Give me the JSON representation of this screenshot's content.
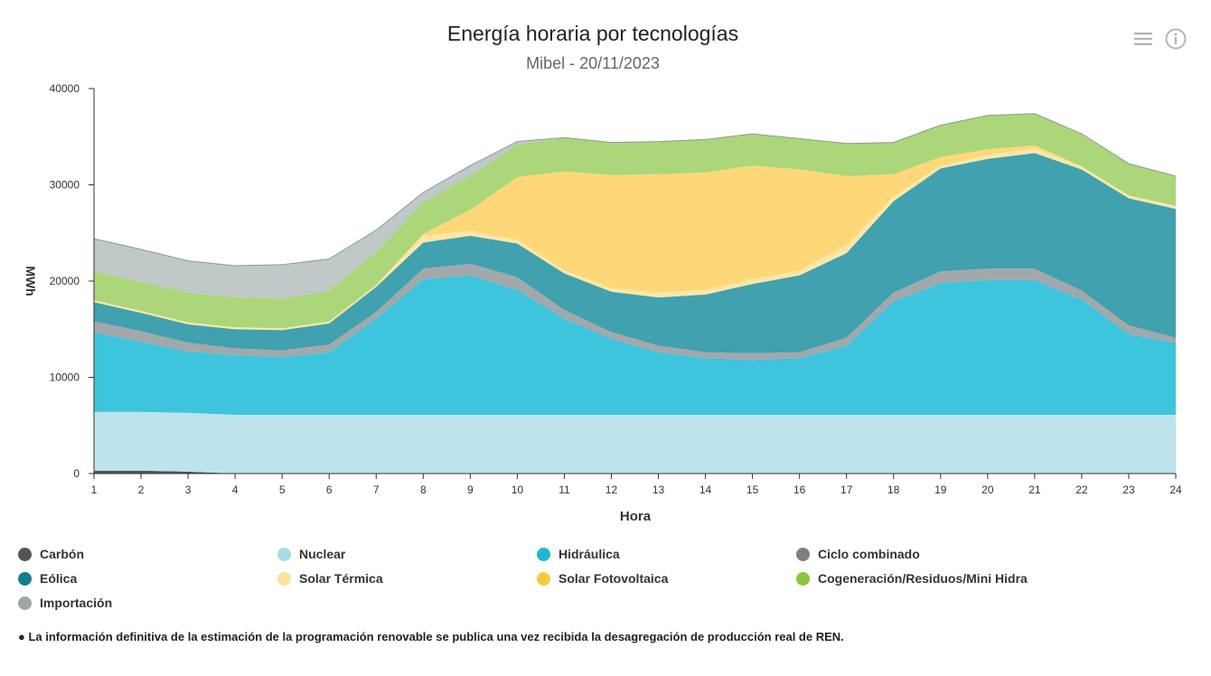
{
  "header": {
    "title": "Energía horaria por tecnologías",
    "subtitle": "Mibel - 20/11/2023"
  },
  "toolbar": {
    "menu_icon": "hamburger-menu-icon",
    "info_icon": "info-circle-icon"
  },
  "chart_data": {
    "type": "area",
    "stacked": true,
    "title": "Energía horaria por tecnologías",
    "subtitle": "Mibel - 20/11/2023",
    "xlabel": "Hora",
    "ylabel": "MWh",
    "x": [
      1,
      2,
      3,
      4,
      5,
      6,
      7,
      8,
      9,
      10,
      11,
      12,
      13,
      14,
      15,
      16,
      17,
      18,
      19,
      20,
      21,
      22,
      23,
      24
    ],
    "ylim": [
      0,
      40000
    ],
    "yticks": [
      0,
      10000,
      20000,
      30000,
      40000
    ],
    "ytick_labels": [
      "0",
      "10000",
      "20000",
      "30000",
      "40000"
    ],
    "grid": false,
    "legend_position": "bottom",
    "series": [
      {
        "name": "Carbón",
        "color": "#555555",
        "values": [
          300,
          300,
          200,
          0,
          0,
          0,
          0,
          0,
          0,
          0,
          0,
          0,
          0,
          0,
          0,
          0,
          0,
          0,
          0,
          0,
          0,
          0,
          0,
          0
        ]
      },
      {
        "name": "Nuclear",
        "color": "#bde3ec",
        "values": [
          6100,
          6100,
          6100,
          6100,
          6100,
          6100,
          6100,
          6100,
          6100,
          6100,
          6100,
          6100,
          6100,
          6100,
          6100,
          6100,
          6100,
          6100,
          6100,
          6100,
          6100,
          6100,
          6100,
          6100
        ]
      },
      {
        "name": "Hidráulica",
        "color": "#3fc4dd",
        "values": [
          8300,
          7300,
          6400,
          6200,
          6000,
          6500,
          10000,
          14100,
          14500,
          13000,
          10000,
          7900,
          6500,
          5900,
          5700,
          5900,
          7200,
          11800,
          13700,
          14000,
          14000,
          12000,
          8400,
          7500
        ]
      },
      {
        "name": "Ciclo combinado",
        "color": "#a3a8ab",
        "values": [
          1100,
          1100,
          900,
          700,
          700,
          800,
          700,
          1100,
          1200,
          1300,
          900,
          700,
          700,
          600,
          700,
          600,
          800,
          900,
          1200,
          1200,
          1200,
          900,
          900,
          500
        ]
      },
      {
        "name": "Eólica",
        "color": "#41a1ae",
        "values": [
          2000,
          1900,
          1900,
          2000,
          2100,
          2200,
          2600,
          2700,
          2900,
          3500,
          3800,
          4200,
          5000,
          6000,
          7200,
          8000,
          8800,
          9500,
          10700,
          11400,
          12000,
          12600,
          13200,
          13400
        ]
      },
      {
        "name": "Solar Térmica",
        "color": "#fde7a6",
        "values": [
          200,
          200,
          200,
          200,
          200,
          200,
          200,
          700,
          500,
          400,
          300,
          400,
          500,
          500,
          500,
          500,
          800,
          500,
          300,
          400,
          500,
          300,
          300,
          300
        ]
      },
      {
        "name": "Solar Fotovoltaica",
        "color": "#fed878",
        "values": [
          0,
          0,
          0,
          0,
          0,
          0,
          0,
          200,
          2200,
          6500,
          10300,
          11700,
          12300,
          12200,
          11800,
          10500,
          7200,
          2300,
          900,
          600,
          300,
          0,
          0,
          0
        ]
      },
      {
        "name": "Cogeneración/Residuos/Mini Hidra",
        "color": "#abd67a",
        "values": [
          3000,
          3000,
          3100,
          3100,
          3100,
          3200,
          3400,
          3300,
          3500,
          3400,
          3500,
          3400,
          3400,
          3400,
          3300,
          3200,
          3400,
          3300,
          3300,
          3500,
          3300,
          3400,
          3300,
          3100
        ]
      },
      {
        "name": "Importación",
        "color": "#bec9c8",
        "values": [
          3400,
          3400,
          3300,
          3300,
          3500,
          3300,
          2300,
          1000,
          1100,
          300,
          0,
          0,
          0,
          0,
          0,
          0,
          0,
          0,
          0,
          0,
          0,
          0,
          0,
          0
        ]
      }
    ]
  },
  "legend": {
    "items": [
      {
        "label": "Carbón",
        "color": "#555555"
      },
      {
        "label": "Nuclear",
        "color": "#a8dbe8"
      },
      {
        "label": "Hidráulica",
        "color": "#1fb6d6"
      },
      {
        "label": "Ciclo combinado",
        "color": "#808080"
      },
      {
        "label": "Eólica",
        "color": "#12808c"
      },
      {
        "label": "Solar Térmica",
        "color": "#fde09a"
      },
      {
        "label": "Solar Fotovoltaica",
        "color": "#fcc93a"
      },
      {
        "label": "Cogeneración/Residuos/Mini Hidra",
        "color": "#8cc63f"
      },
      {
        "label": "Importación",
        "color": "#9da9a6"
      }
    ]
  },
  "footnote": "● La información definitiva de la estimación de la programación renovable se publica una vez recibida la desagregación de producción real de REN."
}
